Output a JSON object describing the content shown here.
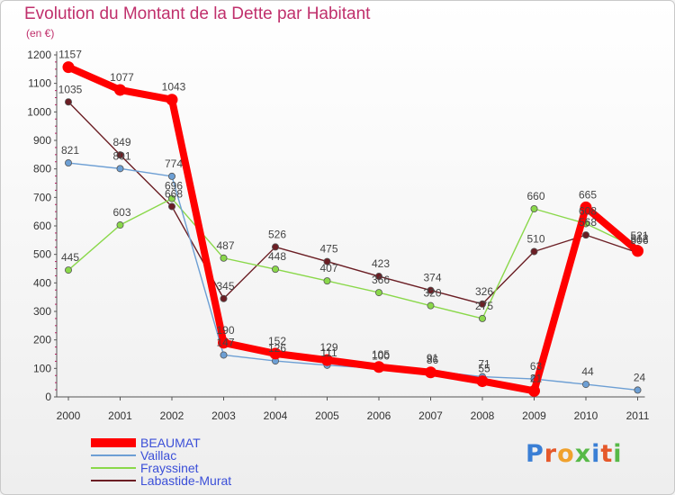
{
  "header": {
    "title": "Evolution du Montant de la Dette par Habitant",
    "unit": "(en €)"
  },
  "chart_data": {
    "type": "line",
    "title": "Evolution du Montant de la Dette par Habitant",
    "ylabel": "(en €)",
    "x": [
      "2000",
      "2001",
      "2002",
      "2003",
      "2004",
      "2005",
      "2006",
      "2007",
      "2008",
      "2009",
      "2010",
      "2011"
    ],
    "ylim": [
      0,
      1200
    ],
    "yticks": [
      0,
      100,
      200,
      300,
      400,
      500,
      600,
      700,
      800,
      900,
      1000,
      1100,
      1200
    ],
    "grid": false,
    "legend_position": "bottom-left",
    "series": [
      {
        "name": "BEAUMAT",
        "color": "#ff0000",
        "values": [
          1157,
          1077,
          1043,
          190,
          152,
          129,
          105,
          86,
          55,
          21,
          665,
          512
        ]
      },
      {
        "name": "Vaillac",
        "color": "#6d9fd4",
        "values": [
          821,
          801,
          774,
          147,
          126,
          111,
          100,
          91,
          71,
          63,
          44,
          24
        ]
      },
      {
        "name": "Frayssinet",
        "color": "#8ad84a",
        "values": [
          445,
          603,
          696,
          487,
          448,
          407,
          366,
          320,
          275,
          660,
          608,
          521
        ]
      },
      {
        "name": "Labastide-Murat",
        "color": "#6b1e24",
        "values": [
          1035,
          849,
          668,
          345,
          526,
          475,
          423,
          374,
          326,
          510,
          568,
          506
        ]
      }
    ]
  },
  "legend": [
    {
      "label": "BEAUMAT"
    },
    {
      "label": "Vaillac"
    },
    {
      "label": "Frayssinet"
    },
    {
      "label": "Labastide-Murat"
    }
  ],
  "brand": {
    "letters": [
      "P",
      "r",
      "o",
      "x",
      "i",
      "t",
      "i"
    ]
  }
}
